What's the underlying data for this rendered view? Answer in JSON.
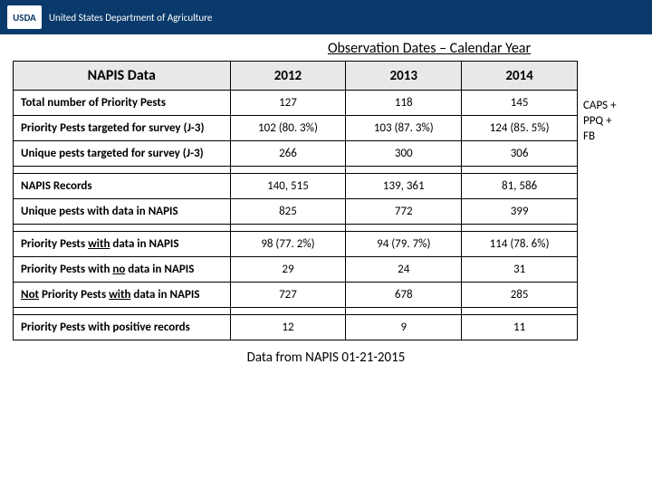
{
  "header": {
    "logo_text": "USDA",
    "dept_name": "United States Department of Agriculture"
  },
  "section_title": "Observation Dates – Calendar Year",
  "table": {
    "row_header": "NAPIS Data",
    "year_headers": [
      "2012",
      "2013",
      "2014"
    ],
    "rows": [
      {
        "label_parts": [
          {
            "t": "Total number of Priority Pests"
          }
        ],
        "values": [
          "127",
          "118",
          "145"
        ]
      },
      {
        "label_parts": [
          {
            "t": "Priority Pests targeted for survey (J-3)"
          }
        ],
        "values": [
          "102 (80. 3%)",
          "103 (87. 3%)",
          "124 (85. 5%)"
        ]
      },
      {
        "label_parts": [
          {
            "t": "Unique pests targeted for survey (J-3)"
          }
        ],
        "values": [
          "266",
          "300",
          "306"
        ]
      },
      {
        "spacer": true
      },
      {
        "label_parts": [
          {
            "t": "NAPIS Records"
          }
        ],
        "values": [
          "140, 515",
          "139, 361",
          "81, 586"
        ]
      },
      {
        "label_parts": [
          {
            "t": "Unique pests with data in NAPIS"
          }
        ],
        "values": [
          "825",
          "772",
          "399"
        ]
      },
      {
        "spacer": true
      },
      {
        "label_parts": [
          {
            "t": "Priority Pests "
          },
          {
            "t": "with",
            "ul": true
          },
          {
            "t": " data in NAPIS"
          }
        ],
        "values": [
          "98 (77. 2%)",
          "94 (79. 7%)",
          "114 (78. 6%)"
        ]
      },
      {
        "label_parts": [
          {
            "t": "Priority Pests with "
          },
          {
            "t": "no",
            "ul": true
          },
          {
            "t": " data in NAPIS"
          }
        ],
        "values": [
          "29",
          "24",
          "31"
        ]
      },
      {
        "label_parts": [
          {
            "t": "Not",
            "ul": true
          },
          {
            "t": " Priority Pests "
          },
          {
            "t": "with",
            "ul": true
          },
          {
            "t": " data in NAPIS"
          }
        ],
        "values": [
          "727",
          "678",
          "285"
        ]
      },
      {
        "spacer": true
      },
      {
        "label_parts": [
          {
            "t": "Priority Pests with positive records"
          }
        ],
        "values": [
          "12",
          "9",
          "11"
        ]
      }
    ]
  },
  "side_note_lines": [
    "CAPS +",
    "PPQ +",
    "FB"
  ],
  "footer_note": "Data from NAPIS 01-21-2015",
  "colors": {
    "header_bg": "#0a3a6b",
    "th_bg": "#e8e8e8",
    "border": "#000000",
    "text": "#000000"
  }
}
